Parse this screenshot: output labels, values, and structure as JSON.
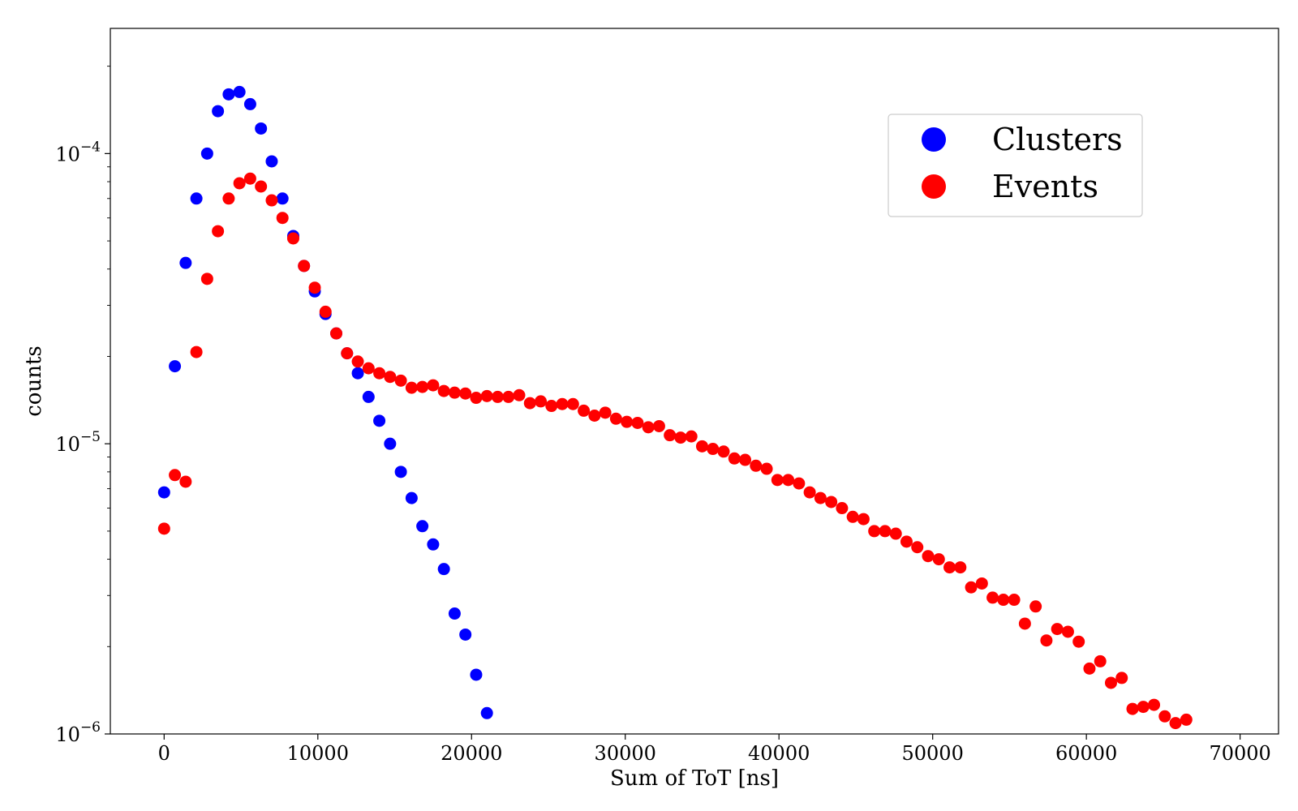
{
  "chart_data": {
    "type": "scatter",
    "title": "",
    "xlabel": "Sum of ToT [ns]",
    "ylabel": "counts",
    "xlim": [
      -3500,
      72500
    ],
    "ylim": [
      1e-06,
      0.00027
    ],
    "yscale": "log",
    "grid": false,
    "legend_position": "top-right",
    "x_ticks": [
      0,
      10000,
      20000,
      30000,
      40000,
      50000,
      60000,
      70000
    ],
    "x_tick_labels": [
      "0",
      "10000",
      "20000",
      "30000",
      "40000",
      "50000",
      "60000",
      "70000"
    ],
    "y_ticks": [
      1e-06,
      1e-05,
      0.0001
    ],
    "y_tick_labels": [
      {
        "base": "10",
        "exp": "−6"
      },
      {
        "base": "10",
        "exp": "−5"
      },
      {
        "base": "10",
        "exp": "−4"
      }
    ],
    "series": [
      {
        "name": "Clusters",
        "color": "#0000ff",
        "x": [
          0,
          700,
          1400,
          2100,
          2800,
          3500,
          4200,
          4900,
          5600,
          6300,
          7000,
          7700,
          8400,
          9100,
          9800,
          10500,
          11200,
          11900,
          12600,
          13300,
          14000,
          14700,
          15400,
          16100,
          16800,
          17500,
          18200,
          18900,
          19600,
          20300,
          21000
        ],
        "y": [
          6.8e-06,
          1.85e-05,
          4.2e-05,
          7e-05,
          0.0001,
          0.00014,
          0.00016,
          0.000163,
          0.000148,
          0.000122,
          9.4e-05,
          7e-05,
          5.2e-05,
          4.1e-05,
          3.35e-05,
          2.8e-05,
          2.4e-05,
          2.05e-05,
          1.75e-05,
          1.45e-05,
          1.2e-05,
          1e-05,
          8e-06,
          6.5e-06,
          5.2e-06,
          4.5e-06,
          3.7e-06,
          2.6e-06,
          2.2e-06,
          1.6e-06,
          1.18e-06
        ]
      },
      {
        "name": "Events",
        "color": "#ff0000",
        "x": [
          0,
          700,
          1400,
          2100,
          2800,
          3500,
          4200,
          4900,
          5600,
          6300,
          7000,
          7700,
          8400,
          9100,
          9800,
          10500,
          11200,
          11900,
          12600,
          13300,
          14000,
          14700,
          15400,
          16100,
          16800,
          17500,
          18200,
          18900,
          19600,
          20300,
          21000,
          21700,
          22400,
          23100,
          23800,
          24500,
          25200,
          25900,
          26600,
          27300,
          28000,
          28700,
          29400,
          30100,
          30800,
          31500,
          32200,
          32900,
          33600,
          34300,
          35000,
          35700,
          36400,
          37100,
          37800,
          38500,
          39200,
          39900,
          40600,
          41300,
          42000,
          42700,
          43400,
          44100,
          44800,
          45500,
          46200,
          46900,
          47600,
          48300,
          49000,
          49700,
          50400,
          51100,
          51800,
          52500,
          53200,
          53900,
          54600,
          55300,
          56000,
          56700,
          57400,
          58100,
          58800,
          59500,
          60200,
          60900,
          61600,
          62300,
          63000,
          63700,
          64400,
          65100,
          65800,
          66500
        ],
        "y": [
          5.1e-06,
          7.8e-06,
          7.4e-06,
          2.07e-05,
          3.7e-05,
          5.4e-05,
          7e-05,
          7.9e-05,
          8.2e-05,
          7.7e-05,
          6.9e-05,
          6e-05,
          5.1e-05,
          4.1e-05,
          3.45e-05,
          2.85e-05,
          2.4e-05,
          2.05e-05,
          1.92e-05,
          1.82e-05,
          1.75e-05,
          1.7e-05,
          1.65e-05,
          1.56e-05,
          1.57e-05,
          1.59e-05,
          1.52e-05,
          1.5e-05,
          1.49e-05,
          1.44e-05,
          1.46e-05,
          1.45e-05,
          1.45e-05,
          1.47e-05,
          1.38e-05,
          1.4e-05,
          1.35e-05,
          1.37e-05,
          1.37e-05,
          1.3e-05,
          1.25e-05,
          1.28e-05,
          1.22e-05,
          1.19e-05,
          1.18e-05,
          1.14e-05,
          1.15e-05,
          1.07e-05,
          1.05e-05,
          1.06e-05,
          9.8e-06,
          9.6e-06,
          9.4e-06,
          8.9e-06,
          8.8e-06,
          8.4e-06,
          8.2e-06,
          7.5e-06,
          7.5e-06,
          7.3e-06,
          6.8e-06,
          6.5e-06,
          6.3e-06,
          6e-06,
          5.6e-06,
          5.5e-06,
          5e-06,
          5e-06,
          4.9e-06,
          4.6e-06,
          4.4e-06,
          4.1e-06,
          4e-06,
          3.75e-06,
          3.75e-06,
          3.2e-06,
          3.3e-06,
          2.95e-06,
          2.9e-06,
          2.9e-06,
          2.4e-06,
          2.75e-06,
          2.1e-06,
          2.3e-06,
          2.25e-06,
          2.08e-06,
          1.68e-06,
          1.78e-06,
          1.5e-06,
          1.56e-06,
          1.22e-06,
          1.24e-06,
          1.26e-06,
          1.15e-06,
          1.09e-06,
          1.12e-06
        ]
      }
    ]
  }
}
